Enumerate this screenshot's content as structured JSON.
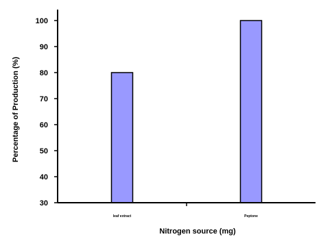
{
  "chart_data": {
    "type": "bar",
    "categories": [
      "leaf extract",
      "Peptone"
    ],
    "values": [
      80,
      100
    ],
    "xlabel": "Nitrogen source (mg)",
    "ylabel": "Percentage of Production (%)",
    "ylim": [
      30,
      100
    ],
    "yticks": [
      "30",
      "40",
      "50",
      "60",
      "70",
      "80",
      "90",
      "100"
    ],
    "bar_color": "#9999ff",
    "grid": false,
    "legend": "none"
  }
}
